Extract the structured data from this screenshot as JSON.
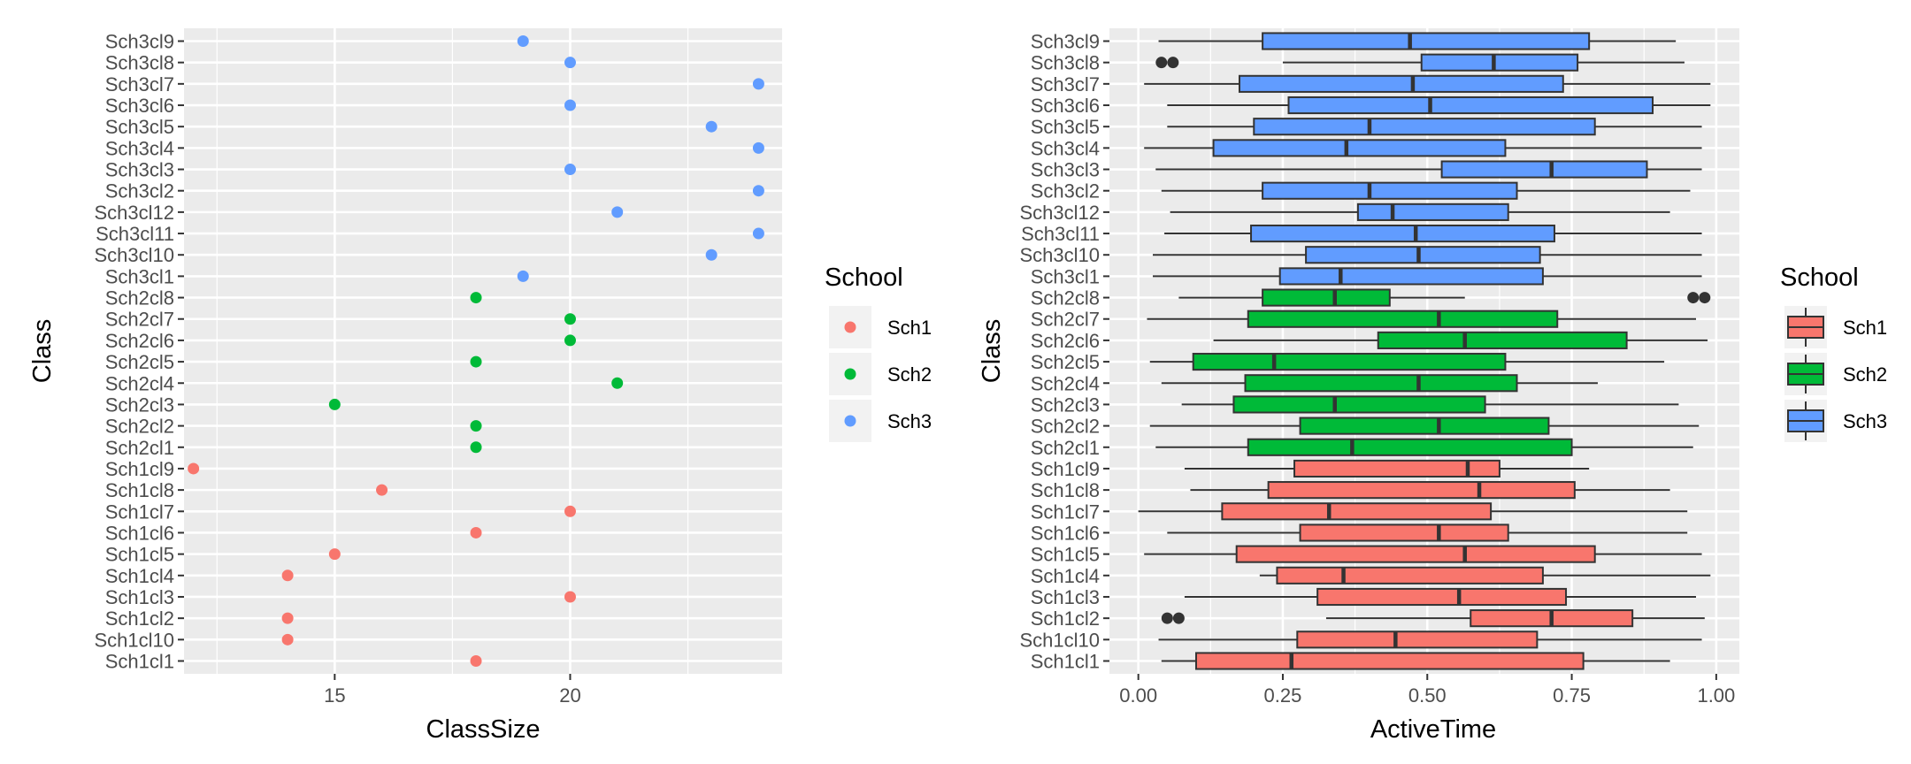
{
  "colors": {
    "panel_bg": "#EBEBEB",
    "grid_major": "#FFFFFF",
    "Sch1": "#F8766D",
    "Sch2": "#00BA38",
    "Sch3": "#619CFF",
    "tick_text": "#4D4D4D",
    "axis_title": "#000000",
    "box_line": "#333333"
  },
  "chart_data": [
    {
      "type": "scatter",
      "xlabel": "ClassSize",
      "ylabel": "Class",
      "xlim": [
        11.8,
        24.5
      ],
      "xticks": [
        15,
        20
      ],
      "legend": {
        "title": "School",
        "position": "right",
        "entries": [
          "Sch1",
          "Sch2",
          "Sch3"
        ]
      },
      "categories": [
        "Sch1cl1",
        "Sch1cl10",
        "Sch1cl2",
        "Sch1cl3",
        "Sch1cl4",
        "Sch1cl5",
        "Sch1cl6",
        "Sch1cl7",
        "Sch1cl8",
        "Sch1cl9",
        "Sch2cl1",
        "Sch2cl2",
        "Sch2cl3",
        "Sch2cl4",
        "Sch2cl5",
        "Sch2cl6",
        "Sch2cl7",
        "Sch2cl8",
        "Sch3cl1",
        "Sch3cl10",
        "Sch3cl11",
        "Sch3cl12",
        "Sch3cl2",
        "Sch3cl3",
        "Sch3cl4",
        "Sch3cl5",
        "Sch3cl6",
        "Sch3cl7",
        "Sch3cl8",
        "Sch3cl9"
      ],
      "points": [
        {
          "class": "Sch1cl1",
          "school": "Sch1",
          "x": 18
        },
        {
          "class": "Sch1cl10",
          "school": "Sch1",
          "x": 14
        },
        {
          "class": "Sch1cl2",
          "school": "Sch1",
          "x": 14
        },
        {
          "class": "Sch1cl3",
          "school": "Sch1",
          "x": 20
        },
        {
          "class": "Sch1cl4",
          "school": "Sch1",
          "x": 14
        },
        {
          "class": "Sch1cl5",
          "school": "Sch1",
          "x": 15
        },
        {
          "class": "Sch1cl6",
          "school": "Sch1",
          "x": 18
        },
        {
          "class": "Sch1cl7",
          "school": "Sch1",
          "x": 20
        },
        {
          "class": "Sch1cl8",
          "school": "Sch1",
          "x": 16
        },
        {
          "class": "Sch1cl9",
          "school": "Sch1",
          "x": 12
        },
        {
          "class": "Sch2cl1",
          "school": "Sch2",
          "x": 18
        },
        {
          "class": "Sch2cl2",
          "school": "Sch2",
          "x": 18
        },
        {
          "class": "Sch2cl3",
          "school": "Sch2",
          "x": 15
        },
        {
          "class": "Sch2cl4",
          "school": "Sch2",
          "x": 21
        },
        {
          "class": "Sch2cl5",
          "school": "Sch2",
          "x": 18
        },
        {
          "class": "Sch2cl6",
          "school": "Sch2",
          "x": 20
        },
        {
          "class": "Sch2cl7",
          "school": "Sch2",
          "x": 20
        },
        {
          "class": "Sch2cl8",
          "school": "Sch2",
          "x": 18
        },
        {
          "class": "Sch3cl1",
          "school": "Sch3",
          "x": 19
        },
        {
          "class": "Sch3cl10",
          "school": "Sch3",
          "x": 23
        },
        {
          "class": "Sch3cl11",
          "school": "Sch3",
          "x": 24
        },
        {
          "class": "Sch3cl12",
          "school": "Sch3",
          "x": 21
        },
        {
          "class": "Sch3cl2",
          "school": "Sch3",
          "x": 24
        },
        {
          "class": "Sch3cl3",
          "school": "Sch3",
          "x": 20
        },
        {
          "class": "Sch3cl4",
          "school": "Sch3",
          "x": 24
        },
        {
          "class": "Sch3cl5",
          "school": "Sch3",
          "x": 23
        },
        {
          "class": "Sch3cl6",
          "school": "Sch3",
          "x": 20
        },
        {
          "class": "Sch3cl7",
          "school": "Sch3",
          "x": 24
        },
        {
          "class": "Sch3cl8",
          "school": "Sch3",
          "x": 20
        },
        {
          "class": "Sch3cl9",
          "school": "Sch3",
          "x": 19
        }
      ]
    },
    {
      "type": "boxplot",
      "xlabel": "ActiveTime",
      "ylabel": "Class",
      "xlim": [
        -0.05,
        1.04
      ],
      "xticks": [
        0.0,
        0.25,
        0.5,
        0.75,
        1.0
      ],
      "xtick_labels": [
        "0.00",
        "0.25",
        "0.50",
        "0.75",
        "1.00"
      ],
      "legend": {
        "title": "School",
        "position": "right",
        "entries": [
          "Sch1",
          "Sch2",
          "Sch3"
        ]
      },
      "boxes": [
        {
          "class": "Sch1cl1",
          "school": "Sch1",
          "min": 0.04,
          "q1": 0.1,
          "median": 0.265,
          "q3": 0.77,
          "max": 0.92,
          "outliers": []
        },
        {
          "class": "Sch1cl10",
          "school": "Sch1",
          "min": 0.035,
          "q1": 0.275,
          "median": 0.445,
          "q3": 0.69,
          "max": 0.975,
          "outliers": []
        },
        {
          "class": "Sch1cl2",
          "school": "Sch1",
          "min": 0.325,
          "q1": 0.575,
          "median": 0.715,
          "q3": 0.855,
          "max": 0.98,
          "outliers": [
            0.05,
            0.07
          ]
        },
        {
          "class": "Sch1cl3",
          "school": "Sch1",
          "min": 0.08,
          "q1": 0.31,
          "median": 0.555,
          "q3": 0.74,
          "max": 0.965,
          "outliers": []
        },
        {
          "class": "Sch1cl4",
          "school": "Sch1",
          "min": 0.21,
          "q1": 0.24,
          "median": 0.355,
          "q3": 0.7,
          "max": 0.99,
          "outliers": []
        },
        {
          "class": "Sch1cl5",
          "school": "Sch1",
          "min": 0.01,
          "q1": 0.17,
          "median": 0.565,
          "q3": 0.79,
          "max": 0.975,
          "outliers": []
        },
        {
          "class": "Sch1cl6",
          "school": "Sch1",
          "min": 0.05,
          "q1": 0.28,
          "median": 0.52,
          "q3": 0.64,
          "max": 0.95,
          "outliers": []
        },
        {
          "class": "Sch1cl7",
          "school": "Sch1",
          "min": 0.0,
          "q1": 0.145,
          "median": 0.33,
          "q3": 0.61,
          "max": 0.95,
          "outliers": []
        },
        {
          "class": "Sch1cl8",
          "school": "Sch1",
          "min": 0.09,
          "q1": 0.225,
          "median": 0.59,
          "q3": 0.755,
          "max": 0.92,
          "outliers": []
        },
        {
          "class": "Sch1cl9",
          "school": "Sch1",
          "min": 0.08,
          "q1": 0.27,
          "median": 0.57,
          "q3": 0.625,
          "max": 0.78,
          "outliers": []
        },
        {
          "class": "Sch2cl1",
          "school": "Sch2",
          "min": 0.03,
          "q1": 0.19,
          "median": 0.37,
          "q3": 0.75,
          "max": 0.96,
          "outliers": []
        },
        {
          "class": "Sch2cl2",
          "school": "Sch2",
          "min": 0.02,
          "q1": 0.28,
          "median": 0.52,
          "q3": 0.71,
          "max": 0.97,
          "outliers": []
        },
        {
          "class": "Sch2cl3",
          "school": "Sch2",
          "min": 0.075,
          "q1": 0.165,
          "median": 0.34,
          "q3": 0.6,
          "max": 0.935,
          "outliers": []
        },
        {
          "class": "Sch2cl4",
          "school": "Sch2",
          "min": 0.04,
          "q1": 0.185,
          "median": 0.485,
          "q3": 0.655,
          "max": 0.795,
          "outliers": []
        },
        {
          "class": "Sch2cl5",
          "school": "Sch2",
          "min": 0.02,
          "q1": 0.095,
          "median": 0.235,
          "q3": 0.635,
          "max": 0.91,
          "outliers": []
        },
        {
          "class": "Sch2cl6",
          "school": "Sch2",
          "min": 0.13,
          "q1": 0.415,
          "median": 0.565,
          "q3": 0.845,
          "max": 0.985,
          "outliers": []
        },
        {
          "class": "Sch2cl7",
          "school": "Sch2",
          "min": 0.015,
          "q1": 0.19,
          "median": 0.52,
          "q3": 0.725,
          "max": 0.965,
          "outliers": []
        },
        {
          "class": "Sch2cl8",
          "school": "Sch2",
          "min": 0.07,
          "q1": 0.215,
          "median": 0.34,
          "q3": 0.435,
          "max": 0.565,
          "outliers": [
            0.96,
            0.98
          ]
        },
        {
          "class": "Sch3cl1",
          "school": "Sch3",
          "min": 0.025,
          "q1": 0.245,
          "median": 0.35,
          "q3": 0.7,
          "max": 0.975,
          "outliers": []
        },
        {
          "class": "Sch3cl10",
          "school": "Sch3",
          "min": 0.025,
          "q1": 0.29,
          "median": 0.485,
          "q3": 0.695,
          "max": 0.975,
          "outliers": []
        },
        {
          "class": "Sch3cl11",
          "school": "Sch3",
          "min": 0.045,
          "q1": 0.195,
          "median": 0.48,
          "q3": 0.72,
          "max": 0.975,
          "outliers": []
        },
        {
          "class": "Sch3cl12",
          "school": "Sch3",
          "min": 0.055,
          "q1": 0.38,
          "median": 0.44,
          "q3": 0.64,
          "max": 0.92,
          "outliers": []
        },
        {
          "class": "Sch3cl2",
          "school": "Sch3",
          "min": 0.04,
          "q1": 0.215,
          "median": 0.4,
          "q3": 0.655,
          "max": 0.955,
          "outliers": []
        },
        {
          "class": "Sch3cl3",
          "school": "Sch3",
          "min": 0.03,
          "q1": 0.525,
          "median": 0.715,
          "q3": 0.88,
          "max": 0.975,
          "outliers": []
        },
        {
          "class": "Sch3cl4",
          "school": "Sch3",
          "min": 0.01,
          "q1": 0.13,
          "median": 0.36,
          "q3": 0.635,
          "max": 0.975,
          "outliers": []
        },
        {
          "class": "Sch3cl5",
          "school": "Sch3",
          "min": 0.05,
          "q1": 0.2,
          "median": 0.4,
          "q3": 0.79,
          "max": 0.975,
          "outliers": []
        },
        {
          "class": "Sch3cl6",
          "school": "Sch3",
          "min": 0.05,
          "q1": 0.26,
          "median": 0.505,
          "q3": 0.89,
          "max": 0.99,
          "outliers": []
        },
        {
          "class": "Sch3cl7",
          "school": "Sch3",
          "min": 0.01,
          "q1": 0.175,
          "median": 0.475,
          "q3": 0.735,
          "max": 0.99,
          "outliers": []
        },
        {
          "class": "Sch3cl8",
          "school": "Sch3",
          "min": 0.25,
          "q1": 0.49,
          "median": 0.615,
          "q3": 0.76,
          "max": 0.945,
          "outliers": [
            0.04,
            0.06
          ]
        },
        {
          "class": "Sch3cl9",
          "school": "Sch3",
          "min": 0.035,
          "q1": 0.215,
          "median": 0.47,
          "q3": 0.78,
          "max": 0.93,
          "outliers": []
        }
      ]
    }
  ]
}
